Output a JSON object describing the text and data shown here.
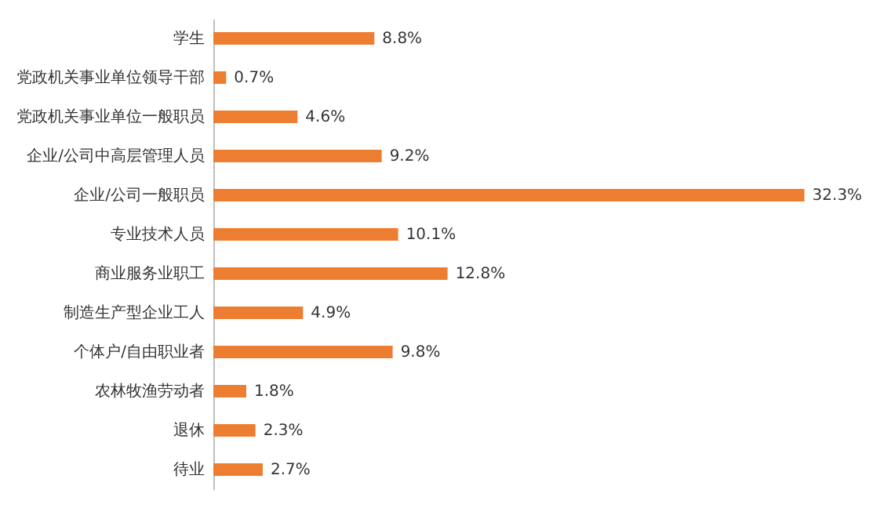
{
  "chart_data": {
    "type": "bar",
    "orientation": "horizontal",
    "categories": [
      "学生",
      "党政机关事业单位领导干部",
      "党政机关事业单位一般职员",
      "企业/公司中高层管理人员",
      "企业/公司一般职员",
      "专业技术人员",
      "商业服务业职工",
      "制造生产型企业工人",
      "个体户/自由职业者",
      "农林牧渔劳动者",
      "退休",
      "待业"
    ],
    "values": [
      8.8,
      0.7,
      4.6,
      9.2,
      32.3,
      10.1,
      12.8,
      4.9,
      9.8,
      1.8,
      2.3,
      2.7
    ],
    "value_labels": [
      "8.8%",
      "0.7%",
      "4.6%",
      "9.2%",
      "32.3%",
      "10.1%",
      "12.8%",
      "4.9%",
      "9.8%",
      "1.8%",
      "2.3%",
      "2.7%"
    ],
    "color": "#ed7d31",
    "grid": false
  }
}
